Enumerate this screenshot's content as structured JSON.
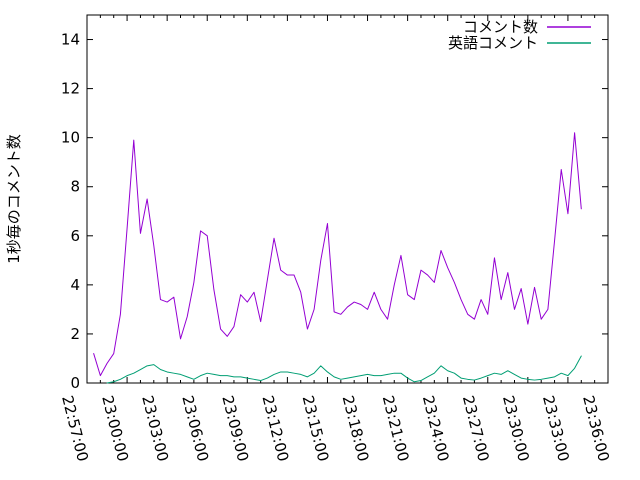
{
  "figure": {
    "background": "#ffffff",
    "axis_color": "#000000",
    "legend": {
      "position": "top-right-inside",
      "entries": [
        {
          "label": "コメント数",
          "color": "#9400d3"
        },
        {
          "label": "英語コメント",
          "color": "#009e73"
        }
      ]
    }
  },
  "chart_data": {
    "type": "line",
    "title": "",
    "xlabel": "",
    "ylabel": "1秒毎のコメント数",
    "grid": false,
    "legend_position": "top-right-inside",
    "x_axis": {
      "min": "22:57:00",
      "max": "23:36:00",
      "major_tick_interval_minutes": 3,
      "minor_tick_interval_minutes": 1,
      "tick_labels": [
        "22:57:00",
        "23:00:00",
        "23:03:00",
        "23:06:00",
        "23:09:00",
        "23:12:00",
        "23:15:00",
        "23:18:00",
        "23:21:00",
        "23:24:00",
        "23:27:00",
        "23:30:00",
        "23:33:00",
        "23:36:00"
      ]
    },
    "y_axis": {
      "min": 0,
      "max": 15,
      "tick_values": [
        0,
        2,
        4,
        6,
        8,
        10,
        12,
        14
      ],
      "tick_labels": [
        "0",
        "2",
        "4",
        "6",
        "8",
        "10",
        "12",
        "14"
      ]
    },
    "x_start": "22:57:30",
    "x_step_seconds": 30,
    "series": [
      {
        "name": "コメント数",
        "color": "#9400d3",
        "values": [
          1.2,
          0.3,
          0.8,
          1.2,
          2.8,
          6.3,
          9.9,
          6.1,
          7.5,
          5.6,
          3.4,
          3.3,
          3.5,
          1.8,
          2.7,
          4.1,
          6.2,
          6.0,
          3.8,
          2.2,
          1.9,
          2.3,
          3.6,
          3.3,
          3.7,
          2.5,
          4.2,
          5.9,
          4.6,
          4.4,
          4.4,
          3.7,
          2.2,
          3.0,
          5.0,
          6.5,
          2.9,
          2.8,
          3.1,
          3.3,
          3.2,
          3.0,
          3.7,
          3.0,
          2.6,
          4.0,
          5.2,
          3.6,
          3.4,
          4.6,
          4.4,
          4.1,
          5.4,
          4.7,
          4.1,
          3.4,
          2.8,
          2.6,
          3.4,
          2.8,
          5.1,
          3.4,
          4.5,
          3.0,
          3.85,
          2.4,
          3.9,
          2.6,
          3.0,
          5.8,
          8.7,
          6.9,
          10.2,
          7.1
        ]
      },
      {
        "name": "英語コメント",
        "color": "#009e73",
        "values": [
          null,
          null,
          0.0,
          0.05,
          0.15,
          0.3,
          0.4,
          0.55,
          0.7,
          0.75,
          0.55,
          0.45,
          0.4,
          0.35,
          0.25,
          0.15,
          0.3,
          0.4,
          0.35,
          0.3,
          0.3,
          0.25,
          0.25,
          0.2,
          0.15,
          0.1,
          0.2,
          0.35,
          0.45,
          0.45,
          0.4,
          0.35,
          0.25,
          0.4,
          0.7,
          0.45,
          0.25,
          0.15,
          0.2,
          0.25,
          0.3,
          0.35,
          0.3,
          0.3,
          0.35,
          0.4,
          0.4,
          0.2,
          0.05,
          0.1,
          0.25,
          0.4,
          0.7,
          0.5,
          0.4,
          0.2,
          0.15,
          0.12,
          0.2,
          0.3,
          0.4,
          0.35,
          0.5,
          0.35,
          0.2,
          0.15,
          0.12,
          0.15,
          0.2,
          0.25,
          0.4,
          0.3,
          0.6,
          1.1
        ]
      }
    ]
  }
}
